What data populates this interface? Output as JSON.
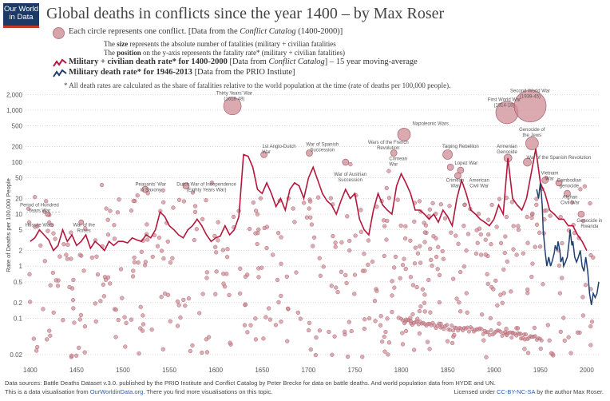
{
  "logo": {
    "line1": "Our World",
    "line2": "in Data"
  },
  "title": "Global deaths in conflicts since the year 1400 – by Max Roser",
  "legend": {
    "circle_line1_a": "Each circle represents one conflict. [Data from the ",
    "circle_line1_i": "Conflict Catalog",
    "circle_line1_b": " (1400-2000)]",
    "size_a": "The ",
    "size_b": "size",
    "size_c": " represents the absolute number of fatalities (military + civilian fatalities",
    "pos_a": "The ",
    "pos_b": "position",
    "pos_c": " on the y-axis represents the fatality rate* (military + civilian fatalities)",
    "red_b": "Military + civilian death rate* for 1400-2000",
    "red_a": " [Data from ",
    "red_i": "Conflict Catalog",
    "red_c": "] – 15 year moving-average",
    "blue_b": "Military death rate* for 1946-2013",
    "blue_c": " [Data from the PRIO Instiute]",
    "note": "* All death rates are calculated as the share of fatalities relative to the world population at the time (rate of deaths per 100,000 people)."
  },
  "colors": {
    "red_line": "#b5163b",
    "blue_line": "#1f3f6e",
    "circle_fill": "#cf8c96",
    "circle_stroke": "#a0505e"
  },
  "footer": {
    "line1": "Data sources: Battle Deaths Dataset v.3.0. published by the PRIO Institute and Conflict Catalog by Peter Brecke for data on battle deaths. And world population data from HYDE and UN.",
    "line2_a": "This is a data visualisation from ",
    "line2_link": "OurWorldinData.org",
    "line2_b": ". There you find more visualisations on this topic.",
    "license_a": "Licensed under ",
    "license_link": "CC-BY-NC-SA",
    "license_b": " by the author Max Roser."
  },
  "chart_data": {
    "type": "scatter",
    "ylabel": "Rate of Deaths per 100,000 People",
    "y_scale": "log",
    "xlim": [
      1395,
      2013
    ],
    "ylim": [
      0.015,
      2500
    ],
    "x_ticks": [
      1400,
      1450,
      1500,
      1550,
      1600,
      1650,
      1700,
      1750,
      1800,
      1850,
      1900,
      1950,
      2000
    ],
    "y_ticks": [
      {
        "v": 2000,
        "label": "2,000"
      },
      {
        "v": 1000,
        "label": "1,000"
      },
      {
        "v": 500,
        "label": "500"
      },
      {
        "v": 200,
        "label": "200"
      },
      {
        "v": 100,
        "label": "100"
      },
      {
        "v": 50,
        "label": "50"
      },
      {
        "v": 20,
        "label": "20"
      },
      {
        "v": 10,
        "label": "10"
      },
      {
        "v": 5,
        "label": "5"
      },
      {
        "v": 2,
        "label": "2"
      },
      {
        "v": 1,
        "label": "1"
      },
      {
        "v": 0.5,
        "label": "0.5"
      },
      {
        "v": 0.2,
        "label": "0.2"
      },
      {
        "v": 0.1,
        "label": "0.1"
      },
      {
        "v": 0.02,
        "label": "0.02"
      }
    ],
    "grid": "horizontal-dotted",
    "series_red": {
      "name": "Military + civilian death rate* for 1400-2000",
      "x": [
        1400,
        1405,
        1410,
        1415,
        1420,
        1425,
        1430,
        1435,
        1440,
        1445,
        1450,
        1455,
        1460,
        1465,
        1470,
        1475,
        1480,
        1485,
        1490,
        1495,
        1500,
        1505,
        1510,
        1515,
        1520,
        1525,
        1530,
        1535,
        1540,
        1545,
        1550,
        1555,
        1560,
        1565,
        1570,
        1575,
        1580,
        1585,
        1590,
        1595,
        1600,
        1605,
        1610,
        1615,
        1620,
        1625,
        1630,
        1635,
        1640,
        1645,
        1650,
        1655,
        1660,
        1665,
        1670,
        1675,
        1680,
        1685,
        1690,
        1695,
        1700,
        1705,
        1710,
        1715,
        1720,
        1725,
        1730,
        1735,
        1740,
        1745,
        1750,
        1755,
        1760,
        1765,
        1770,
        1775,
        1780,
        1785,
        1790,
        1795,
        1800,
        1805,
        1810,
        1815,
        1820,
        1825,
        1830,
        1835,
        1840,
        1845,
        1850,
        1855,
        1860,
        1865,
        1870,
        1875,
        1880,
        1885,
        1890,
        1895,
        1900,
        1905,
        1910,
        1915,
        1920,
        1925,
        1930,
        1935,
        1940,
        1945,
        1950,
        1955,
        1960,
        1965,
        1970,
        1975,
        1980,
        1985,
        1990,
        1995,
        2000
      ],
      "values": [
        3,
        3.5,
        5,
        4,
        3.2,
        2,
        2.5,
        5,
        3,
        4,
        2.5,
        3,
        4,
        2.2,
        3,
        2.5,
        2,
        3,
        2.5,
        3,
        3,
        2.8,
        3.5,
        3.2,
        3,
        4,
        3.5,
        5,
        11,
        9,
        6,
        5,
        4,
        3.5,
        5,
        6,
        8,
        6,
        4,
        3,
        3.5,
        3.8,
        6,
        4,
        5,
        9,
        140,
        130,
        80,
        30,
        25,
        40,
        25,
        14,
        20,
        12,
        30,
        40,
        35,
        20,
        50,
        80,
        45,
        25,
        18,
        15,
        10,
        18,
        30,
        20,
        25,
        8,
        5,
        4,
        12,
        25,
        15,
        12,
        10,
        35,
        60,
        40,
        25,
        12,
        12,
        10,
        8,
        10,
        7,
        12,
        9,
        6,
        20,
        45,
        25,
        12,
        10,
        8,
        7,
        6,
        8,
        15,
        10,
        120,
        20,
        15,
        12,
        20,
        60,
        180,
        40,
        25,
        12,
        10,
        8,
        8,
        6,
        6,
        4,
        3,
        2
      ]
    },
    "series_blue": {
      "name": "Military death rate* for 1946-2013",
      "x": [
        1946,
        1948,
        1950,
        1951,
        1952,
        1953,
        1955,
        1957,
        1959,
        1961,
        1963,
        1965,
        1966,
        1968,
        1969,
        1971,
        1972,
        1974,
        1975,
        1977,
        1979,
        1981,
        1982,
        1984,
        1985,
        1987,
        1989,
        1991,
        1993,
        1995,
        1997,
        1999,
        2001,
        2003,
        2005,
        2007,
        2009,
        2011,
        2013
      ],
      "values": [
        30,
        20,
        40,
        25,
        15,
        5,
        2,
        1,
        1.5,
        1,
        1.3,
        1.8,
        2.5,
        2,
        3,
        2,
        1.2,
        1.5,
        1.0,
        1.2,
        1.5,
        3,
        5,
        2.5,
        3,
        1.5,
        1.2,
        1.5,
        2,
        1,
        0.8,
        1.5,
        0.8,
        0.3,
        0.18,
        0.3,
        0.25,
        0.3,
        0.5
      ]
    },
    "conflict_circles": [
      {
        "x": 1618,
        "y": 1200,
        "r": 11,
        "label": "Thirty Years' War (1618-48)"
      },
      {
        "x": 1914,
        "y": 900,
        "r": 14,
        "label": "First World War (1914-18)"
      },
      {
        "x": 1939,
        "y": 1200,
        "r": 20,
        "label": "Second World War (1939-45)"
      },
      {
        "x": 1803,
        "y": 340,
        "r": 8,
        "label": "Napoleonic Wars"
      },
      {
        "x": 1941,
        "y": 230,
        "r": 8,
        "label": "Genocide of the Jews"
      },
      {
        "x": 1850,
        "y": 140,
        "r": 6,
        "label": "Taiping Rebellion"
      },
      {
        "x": 1915,
        "y": 120,
        "r": 5,
        "label": "Armenian Genocide"
      },
      {
        "x": 1936,
        "y": 100,
        "r": 5,
        "label": "War of the Spanish Revolution"
      },
      {
        "x": 1701,
        "y": 150,
        "r": 4,
        "label": "War of Spanish Succession"
      },
      {
        "x": 1652,
        "y": 140,
        "r": 4,
        "label": "1st Anglo-Dutch War"
      },
      {
        "x": 1792,
        "y": 150,
        "r": 4,
        "label": "Wars of the French Revolution"
      },
      {
        "x": 1740,
        "y": 100,
        "r": 4,
        "label": "War of Austrian Succession"
      },
      {
        "x": 1853,
        "y": 80,
        "r": 4,
        "label": "Crimean War"
      },
      {
        "x": 1864,
        "y": 70,
        "r": 4,
        "label": "Lopez War"
      },
      {
        "x": 1861,
        "y": 55,
        "r": 4,
        "label": "American Civil War"
      },
      {
        "x": 1955,
        "y": 45,
        "r": 4,
        "label": "Vietnam War"
      },
      {
        "x": 1970,
        "y": 40,
        "r": 4,
        "label": "Cambodian genocide"
      },
      {
        "x": 1979,
        "y": 25,
        "r": 4,
        "label": "Afghan Civil War"
      },
      {
        "x": 1994,
        "y": 10,
        "r": 4,
        "label": "Genocide in Rwanda"
      },
      {
        "x": 1524,
        "y": 30,
        "r": 4,
        "label": "Peasants' War in Saxony"
      },
      {
        "x": 1568,
        "y": 35,
        "r": 4,
        "label": "Dutch War of Independence (Eighty Years War)"
      },
      {
        "x": 1419,
        "y": 10,
        "r": 3,
        "label": "Hussite Wars"
      },
      {
        "x": 1455,
        "y": 7,
        "r": 3,
        "label": "War of the Roses"
      },
      {
        "x": 1337,
        "y": 12,
        "r": 3,
        "label": "Period of Hundred Years War"
      }
    ],
    "annotation_labels": [
      {
        "text": "Second World War",
        "text2": "(1939-45)",
        "x": 1939,
        "y": 2200,
        "anchor": "middle"
      },
      {
        "text": "First World War",
        "text2": "(1914-18)",
        "x": 1911,
        "y": 1500,
        "anchor": "middle"
      },
      {
        "text": "Thirty Years' War",
        "text2": "(1618-48)",
        "x": 1620,
        "y": 2000,
        "anchor": "middle"
      },
      {
        "text": "Napoleonic Wars",
        "text2": "",
        "x": 1812,
        "y": 520,
        "anchor": "start"
      },
      {
        "text": "Genocide of",
        "text2": "the Jews",
        "x": 1941,
        "y": 400,
        "anchor": "middle"
      },
      {
        "text": "1st Anglo-Dutch",
        "text2": "War",
        "x": 1650,
        "y": 190,
        "anchor": "start"
      },
      {
        "text": "War of Spanish",
        "text2": "Succession",
        "x": 1715,
        "y": 205,
        "anchor": "middle"
      },
      {
        "text": "Wars of the French",
        "text2": "Revolution",
        "x": 1786,
        "y": 225,
        "anchor": "middle"
      },
      {
        "text": "Taiping Rebellion",
        "text2": "",
        "x": 1864,
        "y": 190,
        "anchor": "middle"
      },
      {
        "text": "Armenian",
        "text2": "Genocide",
        "x": 1914,
        "y": 190,
        "anchor": "middle"
      },
      {
        "text": "Crimean",
        "text2": "War",
        "x": 1787,
        "y": 110,
        "anchor": "start"
      },
      {
        "text": "Lopez War",
        "text2": "",
        "x": 1870,
        "y": 90,
        "anchor": "middle"
      },
      {
        "text": "War of the Spanish Revolution",
        "text2": "",
        "x": 1935,
        "y": 115,
        "anchor": "start"
      },
      {
        "text": "War of Austrian",
        "text2": "Succession",
        "x": 1745,
        "y": 55,
        "anchor": "middle"
      },
      {
        "text": "Crimean",
        "text2": "War",
        "x": 1858,
        "y": 42,
        "anchor": "middle"
      },
      {
        "text": "American",
        "text2": "Civil War",
        "x": 1884,
        "y": 42,
        "anchor": "middle"
      },
      {
        "text": "Vietnam",
        "text2": "War",
        "x": 1960,
        "y": 58,
        "anchor": "middle"
      },
      {
        "text": "Cambodian",
        "text2": "genocide",
        "x": 1981,
        "y": 42,
        "anchor": "middle"
      },
      {
        "text": "Afghan",
        "text2": "Civil War",
        "x": 1982,
        "y": 20,
        "anchor": "middle"
      },
      {
        "text": "Peasants' War",
        "text2": "in Saxony",
        "x": 1530,
        "y": 35,
        "anchor": "middle"
      },
      {
        "text": "Dutch War of Independence",
        "text2": "(Eighty Years War)",
        "x": 1590,
        "y": 35,
        "anchor": "middle"
      },
      {
        "text": "Period of Hundred",
        "text2": "Years War",
        "x": 1410,
        "y": 14,
        "anchor": "middle"
      },
      {
        "text": "Hussite Wars",
        "text2": "",
        "x": 1410,
        "y": 5.8,
        "anchor": "middle"
      },
      {
        "text": "War of the",
        "text2": "Roses",
        "x": 1458,
        "y": 5.8,
        "anchor": "middle"
      },
      {
        "text": "Genocide in",
        "text2": "Rwanda",
        "x": 2003,
        "y": 7,
        "anchor": "middle"
      }
    ]
  }
}
